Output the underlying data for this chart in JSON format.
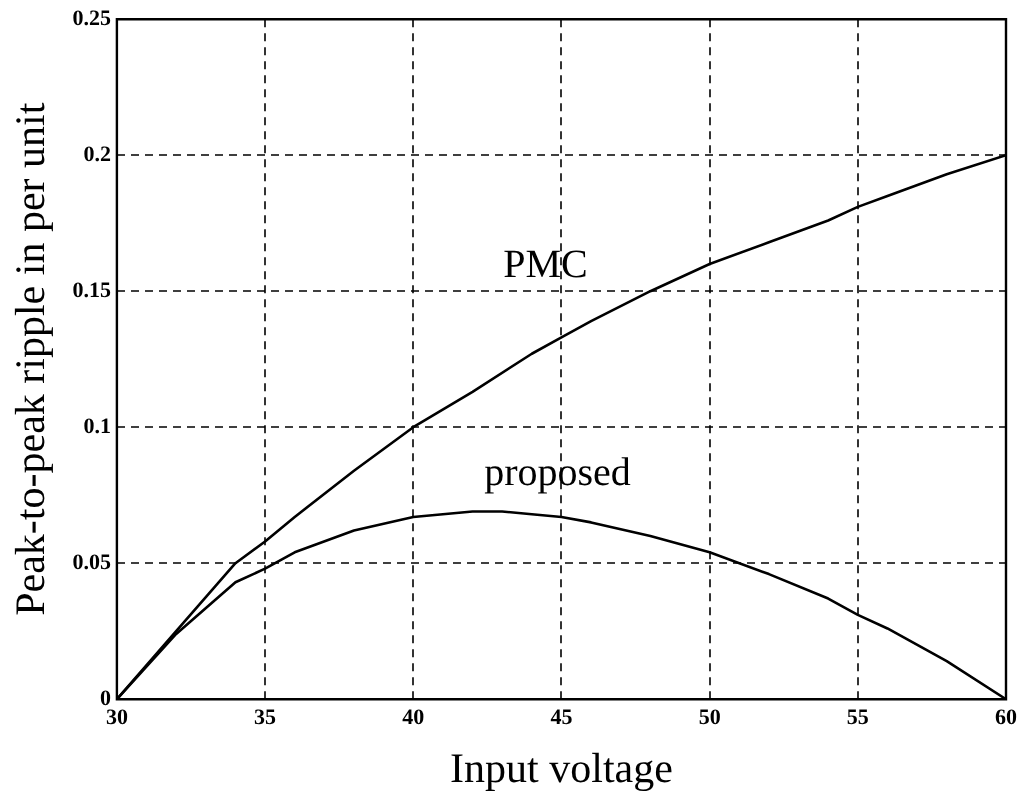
{
  "chart_data": {
    "type": "line",
    "xlabel": "Input voltage",
    "ylabel": "Peak-to-peak ripple in per unit",
    "xlim": [
      30,
      60
    ],
    "xticks": [
      30,
      35,
      40,
      45,
      50,
      55,
      60
    ],
    "ylim": [
      0,
      0.25
    ],
    "yticks": [
      0,
      0.05,
      0.1,
      0.15,
      0.2,
      0.25
    ],
    "grid": true,
    "legend": false,
    "marker": "none",
    "line_style": "solid",
    "series": [
      {
        "name": "PMC",
        "color": "#000000",
        "x": [
          30,
          32,
          34,
          35,
          36,
          38,
          40,
          42,
          44,
          45,
          46,
          48,
          50,
          52,
          54,
          55,
          56,
          58,
          60
        ],
        "values": [
          0,
          0.025,
          0.05,
          0.058,
          0.067,
          0.084,
          0.1,
          0.113,
          0.127,
          0.133,
          0.139,
          0.15,
          0.16,
          0.168,
          0.176,
          0.181,
          0.185,
          0.193,
          0.2
        ]
      },
      {
        "name": "proposed",
        "color": "#000000",
        "x": [
          30,
          32,
          34,
          35,
          36,
          38,
          40,
          42,
          43,
          44,
          45,
          46,
          48,
          50,
          52,
          54,
          55,
          56,
          58,
          60
        ],
        "values": [
          0,
          0.024,
          0.043,
          0.048,
          0.054,
          0.062,
          0.067,
          0.069,
          0.069,
          0.068,
          0.067,
          0.065,
          0.06,
          0.054,
          0.046,
          0.037,
          0.031,
          0.026,
          0.014,
          0
        ]
      }
    ]
  }
}
